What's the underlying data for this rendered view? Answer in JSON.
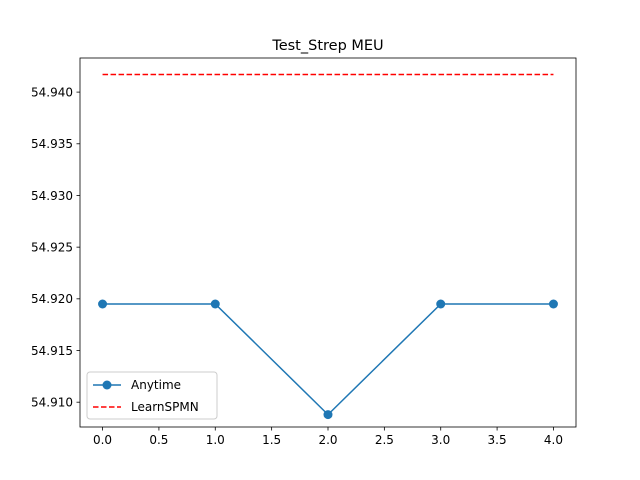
{
  "chart_data": {
    "type": "line",
    "title": "Test_Strep MEU",
    "xlabel": "",
    "ylabel": "",
    "x": [
      0,
      1,
      2,
      3,
      4
    ],
    "xlim": [
      -0.2,
      4.2
    ],
    "ylim": [
      54.9076,
      54.9433
    ],
    "xticks": [
      0.0,
      0.5,
      1.0,
      1.5,
      2.0,
      2.5,
      3.0,
      3.5,
      4.0
    ],
    "xtick_labels": [
      "0.0",
      "0.5",
      "1.0",
      "1.5",
      "2.0",
      "2.5",
      "3.0",
      "3.5",
      "4.0"
    ],
    "yticks": [
      54.91,
      54.915,
      54.92,
      54.925,
      54.93,
      54.935,
      54.94
    ],
    "ytick_labels": [
      "54.910",
      "54.915",
      "54.920",
      "54.925",
      "54.930",
      "54.935",
      "54.940"
    ],
    "grid": false,
    "legend_position": "lower-left",
    "series": [
      {
        "name": "Anytime",
        "values": [
          54.9195,
          54.9195,
          54.9088,
          54.9195,
          54.9195
        ],
        "color": "#1f77b4",
        "style": "solid",
        "marker": "circle"
      },
      {
        "name": "LearnSPMN",
        "values": [
          54.9417,
          54.9417,
          54.9417,
          54.9417,
          54.9417
        ],
        "color": "#ff0000",
        "style": "dashed",
        "marker": "none"
      }
    ]
  }
}
